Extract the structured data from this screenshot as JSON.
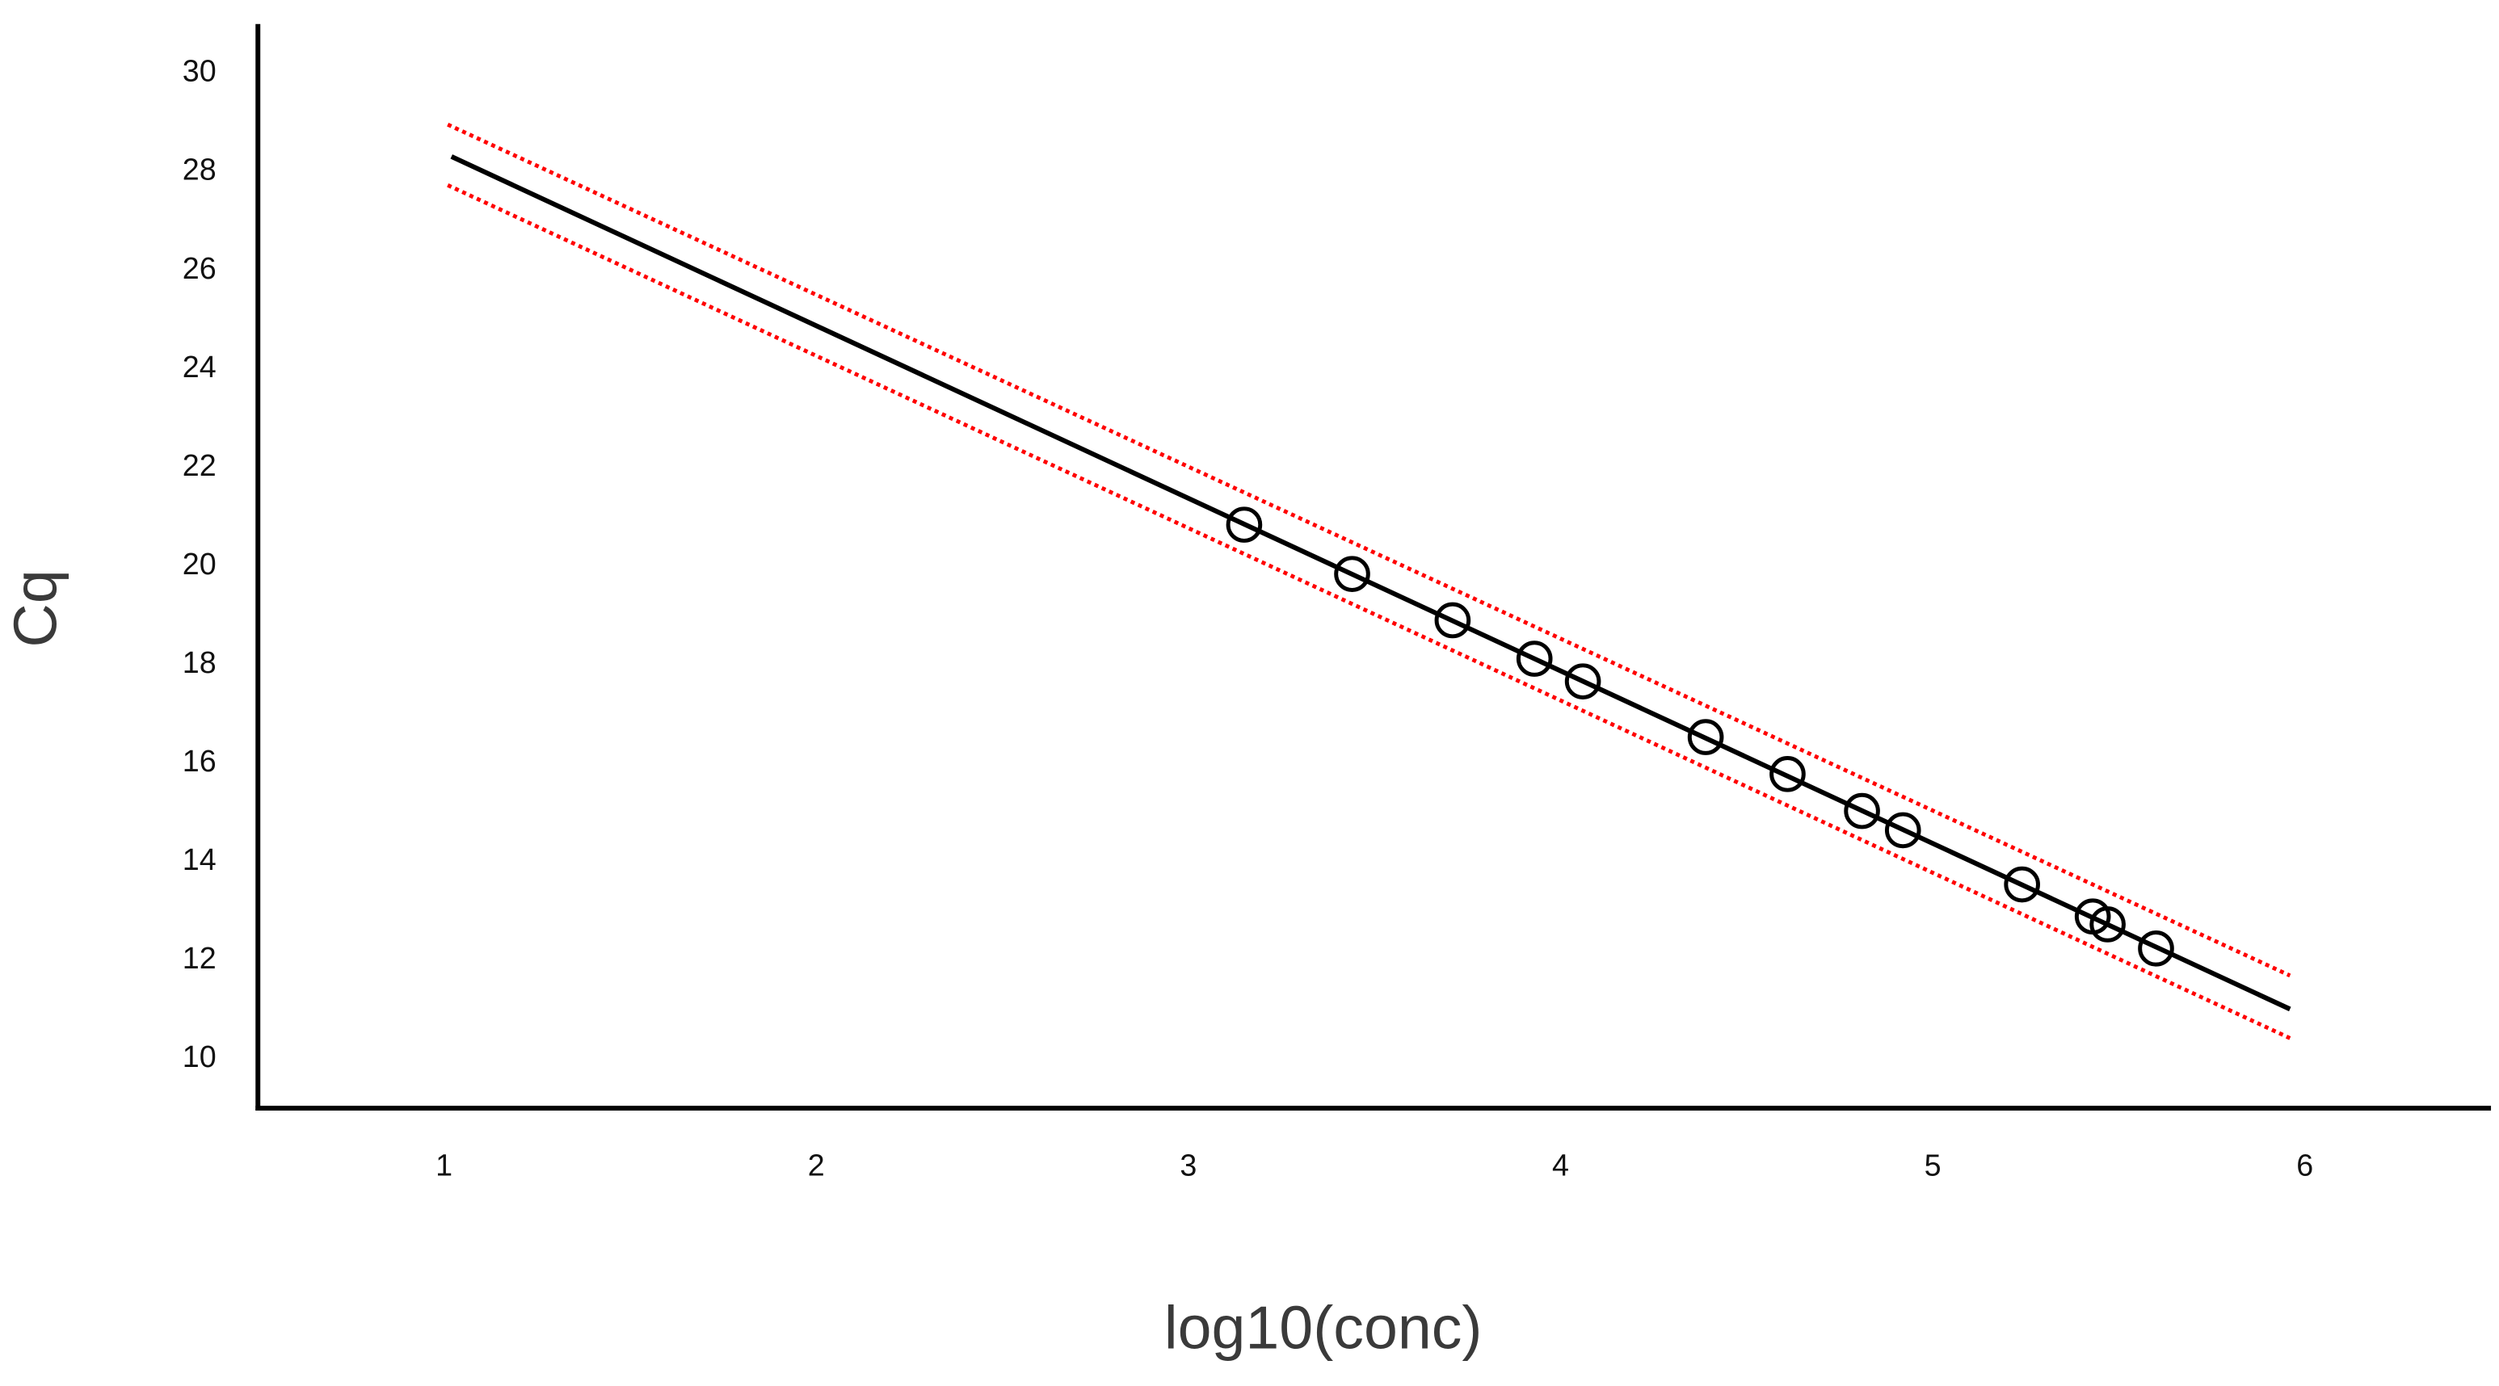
{
  "chart_data": {
    "type": "scatter",
    "x_label": "log10(conc)",
    "y_label": "Cq",
    "xlim": [
      0.5,
      6.5
    ],
    "ylim": [
      9,
      31
    ],
    "xticks": [
      1,
      2,
      3,
      4,
      5,
      6
    ],
    "yticks": [
      10,
      12,
      14,
      16,
      18,
      20,
      22,
      24,
      26,
      28,
      30
    ],
    "series": [
      {
        "type": "line",
        "color": "#ff0000",
        "dash": "dotted",
        "x": [
          1.01,
          5.96
        ],
        "values": [
          28.96,
          11.69
        ]
      },
      {
        "type": "line",
        "color": "#ff0000",
        "dash": "dotted",
        "x": [
          1.01,
          5.96
        ],
        "values": [
          27.73,
          10.42
        ]
      },
      {
        "type": "line",
        "color": "#000000",
        "dash": "solid",
        "x": [
          1.02,
          5.96
        ],
        "values": [
          28.31,
          11.01
        ]
      },
      {
        "type": "scatter",
        "color": "#000000",
        "marker": "open-circle",
        "x": [
          3.15,
          3.44,
          3.71,
          3.93,
          4.06,
          4.39,
          4.61,
          4.81,
          4.92,
          5.24,
          5.43,
          5.47,
          5.6
        ],
        "values": [
          20.84,
          19.84,
          18.9,
          18.12,
          17.66,
          16.53,
          15.78,
          15.03,
          14.64,
          13.54,
          12.89,
          12.73,
          12.24
        ]
      }
    ]
  }
}
